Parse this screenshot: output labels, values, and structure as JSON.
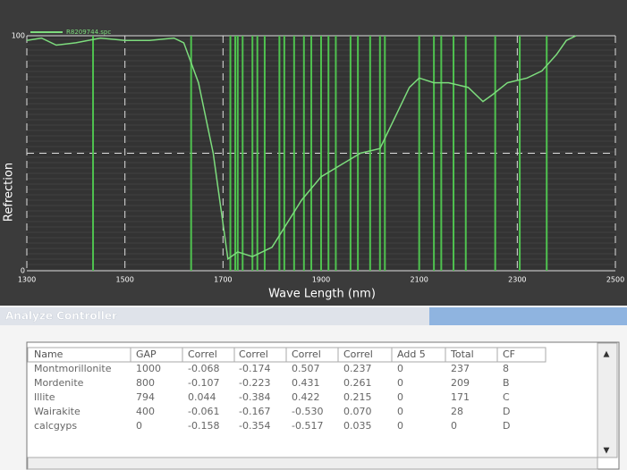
{
  "chart_data": {
    "type": "line",
    "x_label": "Wave Length (nm)",
    "y_label": "Refrection",
    "x": [
      1300,
      1330,
      1360,
      1400,
      1450,
      1500,
      1550,
      1600,
      1620,
      1650,
      1680,
      1700,
      1710,
      1730,
      1760,
      1800,
      1830,
      1860,
      1900,
      1940,
      1980,
      2020,
      2050,
      2080,
      2100,
      2130,
      2160,
      2200,
      2230,
      2250,
      2280,
      2320,
      2350,
      2380,
      2400,
      2420
    ],
    "series": [
      {
        "name": "R8209744.spc",
        "color": "#7ddc7d",
        "values": [
          98,
          99,
          96,
          97,
          99,
          98,
          98,
          99,
          97,
          80,
          50,
          20,
          5,
          8,
          6,
          10,
          20,
          30,
          40,
          45,
          50,
          52,
          65,
          78,
          82,
          80,
          80,
          78,
          72,
          75,
          80,
          82,
          85,
          92,
          98,
          100
        ]
      }
    ],
    "markers": [
      1435,
      1635,
      1715,
      1725,
      1730,
      1740,
      1760,
      1770,
      1785,
      1815,
      1825,
      1845,
      1865,
      1880,
      1900,
      1915,
      1930,
      1960,
      1975,
      2000,
      2020,
      2030,
      2100,
      2130,
      2145,
      2170,
      2195,
      2255,
      2305,
      2360
    ],
    "marker_color": "#4fc24f",
    "xlim": [
      1300,
      2500
    ],
    "xticks": [
      1300,
      1500,
      1700,
      1900,
      2100,
      2300,
      2500
    ],
    "ylim": [
      0,
      100
    ],
    "yticks": [
      0,
      100
    ],
    "hgrid": [
      50
    ],
    "grid": true
  },
  "panel": {
    "title": "Analyze Controller"
  },
  "table": {
    "columns": [
      "Name",
      "GAP",
      "Correl",
      "Correl",
      "Correl",
      "Correl",
      "Add 5",
      "Total",
      "CF"
    ],
    "rows": [
      [
        "Montmorillonite",
        "1000",
        "-0.068",
        "-0.174",
        "0.507",
        "0.237",
        "0",
        "237",
        "8"
      ],
      [
        "Mordenite",
        "800",
        "-0.107",
        "-0.223",
        "0.431",
        "0.261",
        "0",
        "209",
        "B"
      ],
      [
        "Illite",
        "794",
        "0.044",
        "-0.384",
        "0.422",
        "0.215",
        "0",
        "171",
        "C"
      ],
      [
        "Wairakite",
        "400",
        "-0.061",
        "-0.167",
        "-0.530",
        "0.070",
        "0",
        "28",
        "D"
      ],
      [
        "calcgyps",
        "0",
        "-0.158",
        "-0.354",
        "-0.517",
        "0.035",
        "0",
        "0",
        "D"
      ]
    ]
  }
}
